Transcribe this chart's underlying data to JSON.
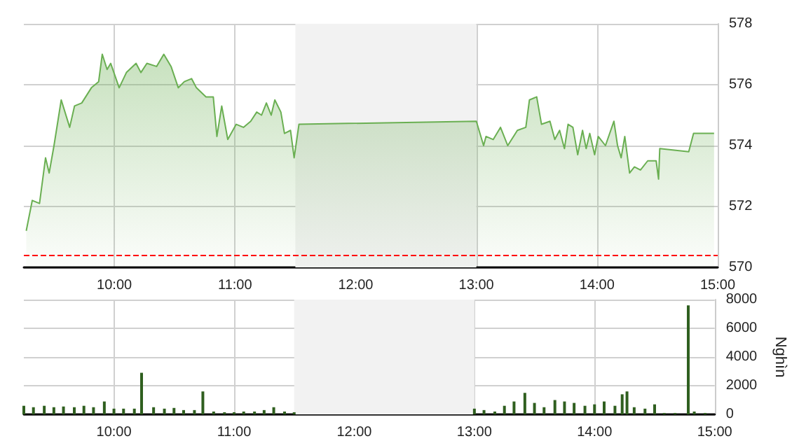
{
  "chart_data": [
    {
      "type": "area",
      "color": "#6aaf52",
      "x": [
        9.27,
        9.32,
        9.38,
        9.43,
        9.46,
        9.5,
        9.56,
        9.63,
        9.67,
        9.73,
        9.81,
        9.87,
        9.9,
        9.94,
        9.97,
        10.04,
        10.1,
        10.18,
        10.22,
        10.27,
        10.35,
        10.41,
        10.47,
        10.53,
        10.58,
        10.64,
        10.68,
        10.76,
        10.82,
        10.85,
        10.89,
        10.94,
        11.01,
        11.07,
        11.13,
        11.18,
        11.22,
        11.26,
        11.3,
        11.33,
        11.38,
        11.41,
        11.46,
        11.49,
        11.53,
        13.0,
        13.06,
        13.08,
        13.14,
        13.2,
        13.26,
        13.34,
        13.41,
        13.44,
        13.5,
        13.54,
        13.61,
        13.65,
        13.69,
        13.73,
        13.76,
        13.8,
        13.84,
        13.88,
        13.91,
        13.94,
        13.98,
        14.01,
        14.07,
        14.14,
        14.17,
        14.2,
        14.23,
        14.27,
        14.31,
        14.36,
        14.42,
        14.49,
        14.51,
        14.52,
        14.76,
        14.8,
        14.97
      ],
      "values": [
        571.2,
        572.2,
        572.1,
        573.6,
        573.1,
        574.0,
        575.5,
        574.6,
        575.3,
        575.4,
        575.9,
        576.1,
        577.0,
        576.5,
        576.7,
        575.9,
        576.4,
        576.7,
        576.4,
        576.7,
        576.6,
        577.0,
        576.6,
        575.9,
        576.1,
        576.2,
        575.9,
        575.6,
        575.6,
        574.3,
        575.3,
        574.2,
        574.7,
        574.6,
        574.8,
        575.1,
        575.0,
        575.4,
        575.0,
        575.5,
        575.1,
        574.4,
        574.5,
        573.6,
        574.7,
        574.8,
        574.0,
        574.3,
        574.2,
        574.6,
        574.0,
        574.5,
        574.6,
        575.5,
        575.6,
        574.7,
        574.8,
        574.2,
        574.5,
        573.9,
        574.7,
        574.6,
        573.7,
        574.5,
        573.9,
        574.4,
        573.7,
        574.3,
        574.0,
        574.8,
        574.0,
        573.6,
        574.3,
        573.1,
        573.3,
        573.2,
        573.5,
        573.5,
        572.9,
        573.9,
        573.8,
        574.4,
        574.4
      ],
      "xlim": [
        9.25,
        15
      ],
      "xticks": [
        {
          "value": 10,
          "label": "10:00"
        },
        {
          "value": 11,
          "label": "11:00"
        },
        {
          "value": 12,
          "label": "12:00"
        },
        {
          "value": 13,
          "label": "13:00"
        },
        {
          "value": 14,
          "label": "14:00"
        },
        {
          "value": 15,
          "label": "15:00"
        }
      ],
      "ylim": [
        570,
        578
      ],
      "yticks": [
        570,
        572,
        574,
        576,
        578
      ],
      "grid": true,
      "ref_lines": [
        {
          "axis": "y",
          "value": 570.4,
          "color": "#ff0000",
          "line_style": "dashed"
        }
      ],
      "bands": [
        {
          "axis": "x",
          "from": 11.5,
          "to": 13,
          "color": "#f2f2f2"
        }
      ]
    },
    {
      "type": "bar",
      "color": "#2f5f1f",
      "ylabel": "Nghìn",
      "x": [
        9.25,
        9.33,
        9.42,
        9.5,
        9.58,
        9.67,
        9.75,
        9.83,
        9.92,
        10.0,
        10.08,
        10.17,
        10.23,
        10.33,
        10.42,
        10.5,
        10.58,
        10.67,
        10.74,
        10.83,
        10.92,
        11.0,
        11.08,
        11.17,
        11.25,
        11.33,
        11.42,
        11.5,
        13.0,
        13.08,
        13.17,
        13.25,
        13.33,
        13.42,
        13.5,
        13.58,
        13.67,
        13.75,
        13.83,
        13.92,
        14.0,
        14.08,
        14.17,
        14.23,
        14.27,
        14.33,
        14.42,
        14.5,
        14.58,
        14.67,
        14.78,
        14.83,
        14.92
      ],
      "values": [
        600,
        500,
        600,
        500,
        550,
        500,
        600,
        500,
        900,
        400,
        400,
        400,
        2900,
        500,
        400,
        450,
        300,
        300,
        1600,
        200,
        150,
        150,
        200,
        200,
        300,
        500,
        200,
        150,
        400,
        300,
        200,
        600,
        900,
        1500,
        800,
        500,
        1000,
        900,
        800,
        600,
        700,
        900,
        600,
        1400,
        1600,
        500,
        400,
        700,
        100,
        100,
        7600,
        200,
        100
      ],
      "xlim": [
        9.25,
        15
      ],
      "xticks": [
        {
          "value": 10,
          "label": "10:00"
        },
        {
          "value": 11,
          "label": "11:00"
        },
        {
          "value": 12,
          "label": "12:00"
        },
        {
          "value": 13,
          "label": "13:00"
        },
        {
          "value": 14,
          "label": "14:00"
        },
        {
          "value": 15,
          "label": "15:00"
        }
      ],
      "ylim": [
        0,
        8000
      ],
      "yticks": [
        0,
        2000,
        4000,
        6000,
        8000
      ],
      "grid": true,
      "bands": [
        {
          "axis": "x",
          "from": 11.5,
          "to": 13,
          "color": "#f2f2f2"
        }
      ]
    }
  ]
}
